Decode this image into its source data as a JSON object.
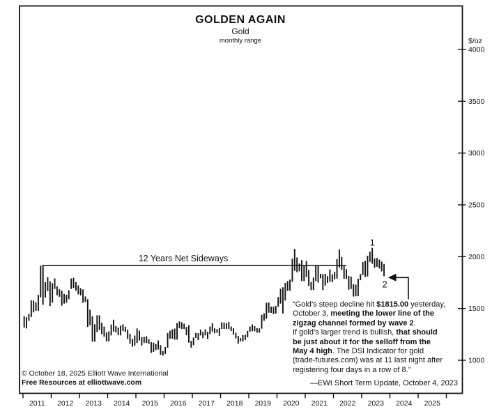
{
  "accent_color": "#111111",
  "background_color": "#ffffff",
  "chart_data": {
    "type": "bar",
    "bar_style": "high-low range bars",
    "title": "GOLDEN AGAIN",
    "subtitle": "Gold",
    "range_label": "monthly range",
    "ylabel": "$/oz",
    "xlabel": "",
    "y_ticks": [
      1000,
      1500,
      2000,
      2500,
      3000,
      3500,
      4000
    ],
    "ylim": [
      700,
      4400
    ],
    "x_years": [
      2011,
      2012,
      2013,
      2014,
      2015,
      2016,
      2017,
      2018,
      2019,
      2020,
      2021,
      2022,
      2023,
      2024,
      2025
    ],
    "grid": false,
    "legend": "none",
    "monthly_ranges_format": [
      "year",
      "month",
      "low",
      "high"
    ],
    "monthly_ranges": [
      [
        2011,
        1,
        1315,
        1424
      ],
      [
        2011,
        2,
        1307,
        1416
      ],
      [
        2011,
        3,
        1381,
        1448
      ],
      [
        2011,
        4,
        1418,
        1578
      ],
      [
        2011,
        5,
        1462,
        1577
      ],
      [
        2011,
        6,
        1478,
        1559
      ],
      [
        2011,
        7,
        1478,
        1632
      ],
      [
        2011,
        8,
        1608,
        1913
      ],
      [
        2011,
        9,
        1535,
        1921
      ],
      [
        2011,
        10,
        1604,
        1754
      ],
      [
        2011,
        11,
        1667,
        1802
      ],
      [
        2011,
        12,
        1523,
        1763
      ],
      [
        2012,
        1,
        1556,
        1744
      ],
      [
        2012,
        2,
        1688,
        1790
      ],
      [
        2012,
        3,
        1627,
        1714
      ],
      [
        2012,
        4,
        1613,
        1685
      ],
      [
        2012,
        5,
        1527,
        1672
      ],
      [
        2012,
        6,
        1547,
        1640
      ],
      [
        2012,
        7,
        1556,
        1633
      ],
      [
        2012,
        8,
        1589,
        1676
      ],
      [
        2012,
        9,
        1688,
        1790
      ],
      [
        2012,
        10,
        1698,
        1796
      ],
      [
        2012,
        11,
        1672,
        1754
      ],
      [
        2012,
        12,
        1636,
        1723
      ],
      [
        2013,
        1,
        1626,
        1696
      ],
      [
        2013,
        2,
        1555,
        1684
      ],
      [
        2013,
        3,
        1563,
        1616
      ],
      [
        2013,
        4,
        1322,
        1590
      ],
      [
        2013,
        5,
        1338,
        1488
      ],
      [
        2013,
        6,
        1180,
        1424
      ],
      [
        2013,
        7,
        1180,
        1348
      ],
      [
        2013,
        8,
        1272,
        1434
      ],
      [
        2013,
        9,
        1291,
        1434
      ],
      [
        2013,
        10,
        1251,
        1362
      ],
      [
        2013,
        11,
        1227,
        1326
      ],
      [
        2013,
        12,
        1182,
        1268
      ],
      [
        2014,
        1,
        1182,
        1278
      ],
      [
        2014,
        2,
        1240,
        1345
      ],
      [
        2014,
        3,
        1277,
        1392
      ],
      [
        2014,
        4,
        1268,
        1331
      ],
      [
        2014,
        5,
        1241,
        1316
      ],
      [
        2014,
        6,
        1240,
        1334
      ],
      [
        2014,
        7,
        1281,
        1346
      ],
      [
        2014,
        8,
        1273,
        1324
      ],
      [
        2014,
        9,
        1206,
        1296
      ],
      [
        2014,
        10,
        1160,
        1256
      ],
      [
        2014,
        11,
        1131,
        1208
      ],
      [
        2014,
        12,
        1141,
        1239
      ],
      [
        2015,
        1,
        1168,
        1307
      ],
      [
        2015,
        2,
        1190,
        1285
      ],
      [
        2015,
        3,
        1141,
        1223
      ],
      [
        2015,
        4,
        1170,
        1225
      ],
      [
        2015,
        5,
        1168,
        1232
      ],
      [
        2015,
        6,
        1157,
        1205
      ],
      [
        2015,
        7,
        1071,
        1175
      ],
      [
        2015,
        8,
        1080,
        1170
      ],
      [
        2015,
        9,
        1098,
        1156
      ],
      [
        2015,
        10,
        1104,
        1191
      ],
      [
        2015,
        11,
        1052,
        1146
      ],
      [
        2015,
        12,
        1045,
        1088
      ],
      [
        2016,
        1,
        1061,
        1128
      ],
      [
        2016,
        2,
        1122,
        1263
      ],
      [
        2016,
        3,
        1208,
        1285
      ],
      [
        2016,
        4,
        1208,
        1299
      ],
      [
        2016,
        5,
        1199,
        1306
      ],
      [
        2016,
        6,
        1199,
        1359
      ],
      [
        2016,
        7,
        1310,
        1375
      ],
      [
        2016,
        8,
        1302,
        1367
      ],
      [
        2016,
        9,
        1302,
        1353
      ],
      [
        2016,
        10,
        1241,
        1322
      ],
      [
        2016,
        11,
        1170,
        1338
      ],
      [
        2016,
        12,
        1122,
        1188
      ],
      [
        2017,
        1,
        1146,
        1220
      ],
      [
        2017,
        2,
        1216,
        1264
      ],
      [
        2017,
        3,
        1195,
        1261
      ],
      [
        2017,
        4,
        1240,
        1296
      ],
      [
        2017,
        5,
        1214,
        1273
      ],
      [
        2017,
        6,
        1240,
        1298
      ],
      [
        2017,
        7,
        1204,
        1275
      ],
      [
        2017,
        8,
        1251,
        1326
      ],
      [
        2017,
        9,
        1276,
        1358
      ],
      [
        2017,
        10,
        1260,
        1308
      ],
      [
        2017,
        11,
        1265,
        1300
      ],
      [
        2017,
        12,
        1236,
        1310
      ],
      [
        2018,
        1,
        1302,
        1366
      ],
      [
        2018,
        2,
        1302,
        1362
      ],
      [
        2018,
        3,
        1303,
        1357
      ],
      [
        2018,
        4,
        1301,
        1370
      ],
      [
        2018,
        5,
        1282,
        1326
      ],
      [
        2018,
        6,
        1245,
        1309
      ],
      [
        2018,
        7,
        1211,
        1266
      ],
      [
        2018,
        8,
        1160,
        1235
      ],
      [
        2018,
        9,
        1183,
        1214
      ],
      [
        2018,
        10,
        1181,
        1243
      ],
      [
        2018,
        11,
        1196,
        1246
      ],
      [
        2018,
        12,
        1221,
        1284
      ],
      [
        2019,
        1,
        1276,
        1326
      ],
      [
        2019,
        2,
        1280,
        1346
      ],
      [
        2019,
        3,
        1280,
        1330
      ],
      [
        2019,
        4,
        1266,
        1310
      ],
      [
        2019,
        5,
        1266,
        1308
      ],
      [
        2019,
        6,
        1305,
        1439
      ],
      [
        2019,
        7,
        1381,
        1453
      ],
      [
        2019,
        8,
        1400,
        1555
      ],
      [
        2019,
        9,
        1459,
        1557
      ],
      [
        2019,
        10,
        1458,
        1518
      ],
      [
        2019,
        11,
        1445,
        1517
      ],
      [
        2019,
        12,
        1450,
        1525
      ],
      [
        2020,
        1,
        1517,
        1611
      ],
      [
        2020,
        2,
        1547,
        1691
      ],
      [
        2020,
        3,
        1451,
        1704
      ],
      [
        2020,
        4,
        1576,
        1747
      ],
      [
        2020,
        5,
        1670,
        1765
      ],
      [
        2020,
        6,
        1671,
        1779
      ],
      [
        2020,
        7,
        1757,
        1981
      ],
      [
        2020,
        8,
        1863,
        2075
      ],
      [
        2020,
        9,
        1849,
        1992
      ],
      [
        2020,
        10,
        1859,
        1933
      ],
      [
        2020,
        11,
        1765,
        1966
      ],
      [
        2020,
        12,
        1764,
        1912
      ],
      [
        2021,
        1,
        1804,
        1959
      ],
      [
        2021,
        2,
        1717,
        1871
      ],
      [
        2021,
        3,
        1677,
        1755
      ],
      [
        2021,
        4,
        1678,
        1798
      ],
      [
        2021,
        5,
        1765,
        1913
      ],
      [
        2021,
        6,
        1750,
        1919
      ],
      [
        2021,
        7,
        1791,
        1834
      ],
      [
        2021,
        8,
        1677,
        1831
      ],
      [
        2021,
        9,
        1721,
        1834
      ],
      [
        2021,
        10,
        1746,
        1813
      ],
      [
        2021,
        11,
        1759,
        1877
      ],
      [
        2021,
        12,
        1753,
        1830
      ],
      [
        2022,
        1,
        1780,
        1853
      ],
      [
        2022,
        2,
        1788,
        1976
      ],
      [
        2022,
        3,
        1895,
        2070
      ],
      [
        2022,
        4,
        1872,
        1998
      ],
      [
        2022,
        5,
        1787,
        1910
      ],
      [
        2022,
        6,
        1784,
        1879
      ],
      [
        2022,
        7,
        1681,
        1814
      ],
      [
        2022,
        8,
        1688,
        1808
      ],
      [
        2022,
        9,
        1615,
        1735
      ],
      [
        2022,
        10,
        1617,
        1730
      ],
      [
        2022,
        11,
        1618,
        1787
      ],
      [
        2022,
        12,
        1773,
        1833
      ],
      [
        2023,
        1,
        1823,
        1949
      ],
      [
        2023,
        2,
        1805,
        1960
      ],
      [
        2023,
        3,
        1809,
        2009
      ],
      [
        2023,
        4,
        1950,
        2048
      ],
      [
        2023,
        5,
        1932,
        2085
      ],
      [
        2023,
        6,
        1893,
        1983
      ],
      [
        2023,
        7,
        1902,
        1987
      ],
      [
        2023,
        8,
        1885,
        1972
      ],
      [
        2023,
        9,
        1858,
        1953
      ],
      [
        2023,
        10,
        1812,
        1930
      ]
    ],
    "annotations": {
      "sideways_label": "12 Years Net Sideways",
      "sideways_line_level": 1915,
      "sideways_line_span": [
        "2011-09",
        "2022-06"
      ],
      "wave1": "1",
      "wave1_at": "2023-05 high",
      "wave2": "2",
      "wave2_at": "2023-10 low"
    }
  },
  "quote": {
    "lines": [
      [
        {
          "t": "“Gold’s steep decline hit ",
          "b": 0
        },
        {
          "t": "$1815.00",
          "b": 1
        },
        {
          "t": " yesterday,",
          "b": 0
        }
      ],
      [
        {
          "t": "October 3, ",
          "b": 0
        },
        {
          "t": "meeting the lower line of the",
          "b": 1
        }
      ],
      [
        {
          "t": "zigzag channel formed by wave 2",
          "b": 1
        },
        {
          "t": ".",
          "b": 0
        }
      ],
      [
        {
          "t": "If gold’s larger trend is bullish, ",
          "b": 0
        },
        {
          "t": "that should",
          "b": 1
        }
      ],
      [
        {
          "t": "be just about it for the selloff from the",
          "b": 1
        }
      ],
      [
        {
          "t": "May 4 high",
          "b": 1
        },
        {
          "t": ". The DSI Indicator for gold",
          "b": 0
        }
      ],
      [
        {
          "t": "(trade-futures.com) was at 11 last night after",
          "b": 0
        }
      ],
      [
        {
          "t": "registering four days in a row of 8.”",
          "b": 0
        }
      ]
    ],
    "attribution": "—EWI Short Term Update, October 4, 2023"
  },
  "copyright": {
    "line1": "© October 18, 2025  Elliott Wave International",
    "line2": "Free Resources at elliottwave.com"
  }
}
